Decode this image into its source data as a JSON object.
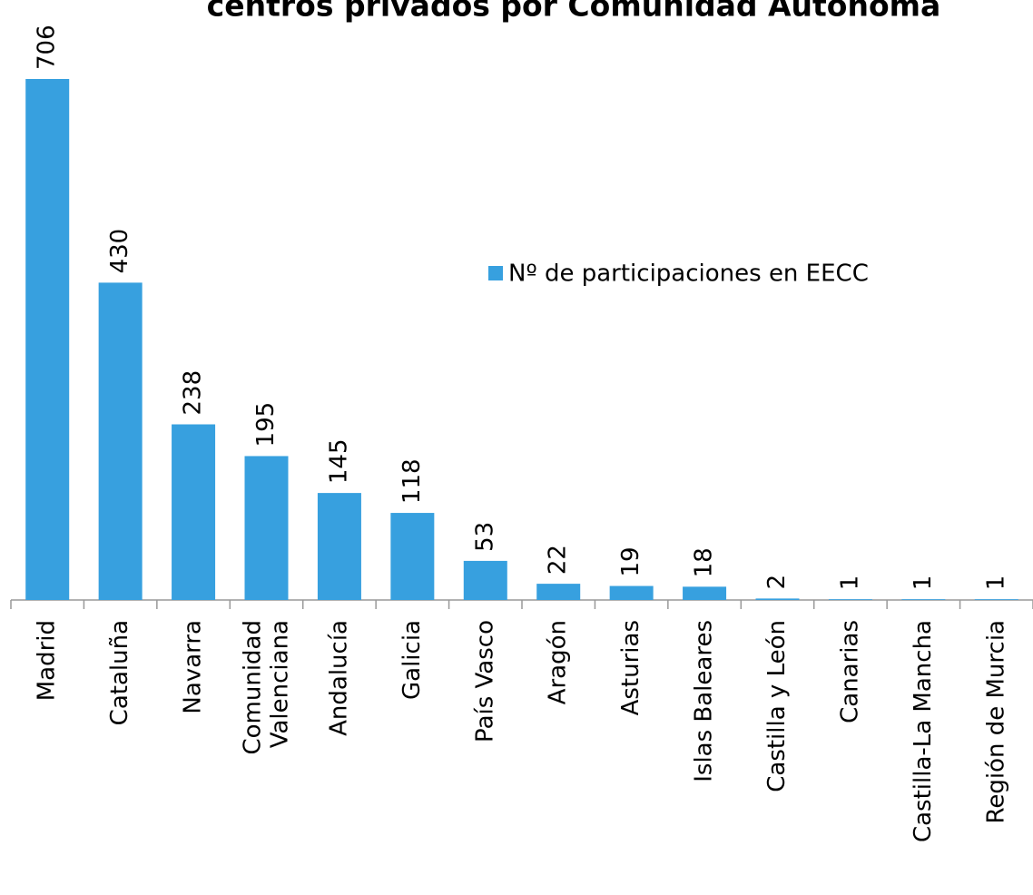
{
  "chart_data": {
    "type": "bar",
    "title": "centros privados por Comunidad Autónoma",
    "categories": [
      "Madrid",
      "Cataluña",
      "Navarra",
      "Comunidad Valenciana",
      "Andalucía",
      "Galicia",
      "País Vasco",
      "Aragón",
      "Asturias",
      "Islas Baleares",
      "Castilla y León",
      "Canarias",
      "Castilla-La Mancha",
      "Región de Murcia"
    ],
    "series": [
      {
        "name": "Nº de participaciones en EECC",
        "color": "#37a0df",
        "values": [
          706,
          430,
          238,
          195,
          145,
          118,
          53,
          22,
          19,
          18,
          2,
          1,
          1,
          1
        ]
      }
    ],
    "legend": "right"
  }
}
